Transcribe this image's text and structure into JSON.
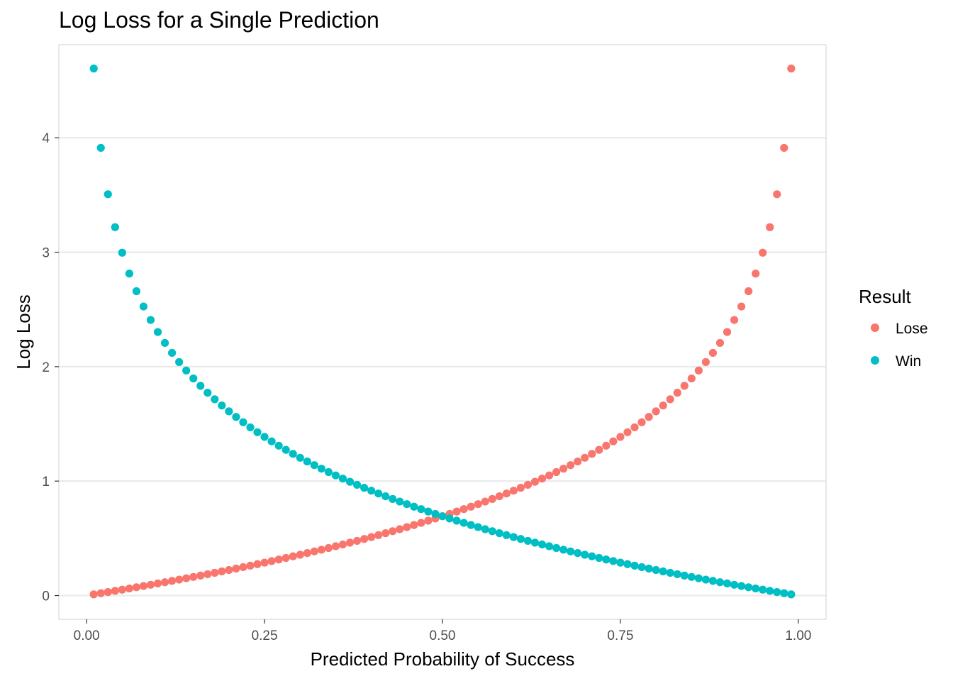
{
  "chart_data": {
    "type": "scatter",
    "title": "Log Loss for a Single Prediction",
    "xlabel": "Predicted Probability of Success",
    "ylabel": "Log Loss",
    "xlim": [
      -0.039,
      1.039
    ],
    "ylim": [
      -0.2075,
      4.8135
    ],
    "x_ticks": [
      0,
      0.25,
      0.5,
      0.75,
      1
    ],
    "x_tick_labels": [
      "0.00",
      "0.25",
      "0.50",
      "0.75",
      "1.00"
    ],
    "y_ticks": [
      0,
      1,
      2,
      3,
      4
    ],
    "y_tick_labels": [
      "0",
      "1",
      "2",
      "3",
      "4"
    ],
    "grid": true,
    "legend": {
      "title": "Result",
      "position": "right"
    },
    "x": [
      0.01,
      0.02,
      0.03,
      0.04,
      0.05,
      0.06,
      0.07,
      0.08,
      0.09,
      0.1,
      0.11,
      0.12,
      0.13,
      0.14,
      0.15,
      0.16,
      0.17,
      0.18,
      0.19,
      0.2,
      0.21,
      0.22,
      0.23,
      0.24,
      0.25,
      0.26,
      0.27,
      0.28,
      0.29,
      0.3,
      0.31,
      0.32,
      0.33,
      0.34,
      0.35,
      0.36,
      0.37,
      0.38,
      0.39,
      0.4,
      0.41,
      0.42,
      0.43,
      0.44,
      0.45,
      0.46,
      0.47,
      0.48,
      0.49,
      0.5,
      0.51,
      0.52,
      0.53,
      0.54,
      0.55,
      0.56,
      0.57,
      0.58,
      0.59,
      0.6,
      0.61,
      0.62,
      0.63,
      0.64,
      0.65,
      0.66,
      0.67,
      0.68,
      0.69,
      0.7,
      0.71,
      0.72,
      0.73,
      0.74,
      0.75,
      0.76,
      0.77,
      0.78,
      0.79,
      0.8,
      0.81,
      0.82,
      0.83,
      0.84,
      0.85,
      0.86,
      0.87,
      0.88,
      0.89,
      0.9,
      0.91,
      0.92,
      0.93,
      0.94,
      0.95,
      0.96,
      0.97,
      0.98,
      0.99
    ],
    "series": [
      {
        "name": "Lose",
        "color": "#F8766D",
        "values": [
          0.0101,
          0.0202,
          0.0305,
          0.0408,
          0.0513,
          0.0619,
          0.0726,
          0.0834,
          0.0943,
          0.1054,
          0.1165,
          0.1278,
          0.1393,
          0.1508,
          0.1625,
          0.1744,
          0.1863,
          0.1985,
          0.2107,
          0.2231,
          0.2357,
          0.2485,
          0.2614,
          0.2744,
          0.2877,
          0.3011,
          0.3147,
          0.3285,
          0.3425,
          0.3567,
          0.3711,
          0.3857,
          0.4005,
          0.4155,
          0.4308,
          0.4463,
          0.462,
          0.478,
          0.4943,
          0.5108,
          0.5276,
          0.5447,
          0.5621,
          0.5798,
          0.5978,
          0.6162,
          0.6349,
          0.6539,
          0.6733,
          0.6931,
          0.7133,
          0.734,
          0.755,
          0.7765,
          0.7985,
          0.821,
          0.844,
          0.8675,
          0.8916,
          0.9163,
          0.9416,
          0.9676,
          0.9943,
          1.0217,
          1.0498,
          1.0788,
          1.1087,
          1.1394,
          1.1712,
          1.204,
          1.2379,
          1.273,
          1.3093,
          1.3471,
          1.3863,
          1.4271,
          1.4697,
          1.5141,
          1.5606,
          1.6094,
          1.6607,
          1.7148,
          1.772,
          1.8326,
          1.8971,
          1.9661,
          2.0402,
          2.1203,
          2.2073,
          2.3026,
          2.4079,
          2.5257,
          2.6593,
          2.8134,
          2.9957,
          3.2189,
          3.5066,
          3.912,
          4.6052
        ]
      },
      {
        "name": "Win",
        "color": "#00BFC4",
        "values": [
          4.6052,
          3.912,
          3.5066,
          3.2189,
          2.9957,
          2.8134,
          2.6593,
          2.5257,
          2.4079,
          2.3026,
          2.2073,
          2.1203,
          2.0402,
          1.9661,
          1.8971,
          1.8326,
          1.772,
          1.7148,
          1.6607,
          1.6094,
          1.5606,
          1.5141,
          1.4697,
          1.4271,
          1.3863,
          1.3471,
          1.3093,
          1.273,
          1.2379,
          1.204,
          1.1712,
          1.1394,
          1.1087,
          1.0788,
          1.0498,
          1.0217,
          0.9943,
          0.9676,
          0.9416,
          0.9163,
          0.8916,
          0.8675,
          0.844,
          0.821,
          0.7985,
          0.7765,
          0.755,
          0.734,
          0.7133,
          0.6931,
          0.6733,
          0.6539,
          0.6349,
          0.6162,
          0.5978,
          0.5798,
          0.5621,
          0.5447,
          0.5276,
          0.5108,
          0.4943,
          0.478,
          0.462,
          0.4463,
          0.4308,
          0.4155,
          0.4005,
          0.3857,
          0.3711,
          0.3567,
          0.3425,
          0.3285,
          0.3147,
          0.3011,
          0.2877,
          0.2744,
          0.2614,
          0.2485,
          0.2357,
          0.2231,
          0.2107,
          0.1985,
          0.1863,
          0.1744,
          0.1625,
          0.1508,
          0.1393,
          0.1278,
          0.1165,
          0.1054,
          0.0943,
          0.0834,
          0.0726,
          0.0619,
          0.0513,
          0.0408,
          0.0305,
          0.0202,
          0.0101
        ]
      }
    ]
  }
}
